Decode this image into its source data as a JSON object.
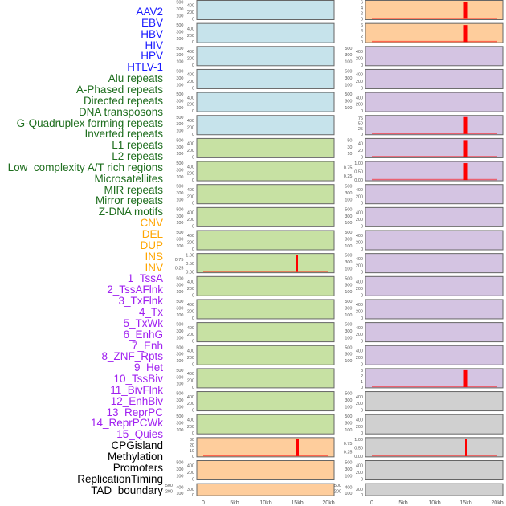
{
  "legend": [
    {
      "label": "AAV2",
      "color": "#1a1aff"
    },
    {
      "label": "EBV",
      "color": "#1a1aff"
    },
    {
      "label": "HBV",
      "color": "#1a1aff"
    },
    {
      "label": "HIV",
      "color": "#1a1aff"
    },
    {
      "label": "HPV",
      "color": "#1a1aff"
    },
    {
      "label": "HTLV-1",
      "color": "#1a1aff"
    },
    {
      "label": "Alu repeats",
      "color": "#1e6e1e"
    },
    {
      "label": "A-Phased repeats",
      "color": "#1e6e1e"
    },
    {
      "label": "Directed repeats",
      "color": "#1e6e1e"
    },
    {
      "label": "DNA transposons",
      "color": "#1e6e1e"
    },
    {
      "label": "G-Quadruplex forming repeats",
      "color": "#1e6e1e"
    },
    {
      "label": "Inverted repeats",
      "color": "#1e6e1e"
    },
    {
      "label": "L1 repeats",
      "color": "#1e6e1e"
    },
    {
      "label": "L2 repeats",
      "color": "#1e6e1e"
    },
    {
      "label": "Low_complexity A/T rich regions",
      "color": "#1e6e1e"
    },
    {
      "label": "Microsatellites",
      "color": "#1e6e1e"
    },
    {
      "label": "MIR repeats",
      "color": "#1e6e1e"
    },
    {
      "label": "Mirror repeats",
      "color": "#1e6e1e"
    },
    {
      "label": "Z-DNA motifs",
      "color": "#1e6e1e"
    },
    {
      "label": "CNV",
      "color": "#ffa500"
    },
    {
      "label": "DEL",
      "color": "#ffa500"
    },
    {
      "label": "DUP",
      "color": "#ffa500"
    },
    {
      "label": "INS",
      "color": "#ffa500"
    },
    {
      "label": "INV",
      "color": "#ffa500"
    },
    {
      "label": "1_TssA",
      "color": "#a020f0"
    },
    {
      "label": "2_TssAFlnk",
      "color": "#a020f0"
    },
    {
      "label": "3_TxFlnk",
      "color": "#a020f0"
    },
    {
      "label": "4_Tx",
      "color": "#a020f0"
    },
    {
      "label": "5_TxWk",
      "color": "#a020f0"
    },
    {
      "label": "6_EnhG",
      "color": "#a020f0"
    },
    {
      "label": "7_Enh",
      "color": "#a020f0"
    },
    {
      "label": "8_ZNF_Rpts",
      "color": "#a020f0"
    },
    {
      "label": "9_Het",
      "color": "#a020f0"
    },
    {
      "label": "10_TssBiv",
      "color": "#a020f0"
    },
    {
      "label": "11_BivFlnk",
      "color": "#a020f0"
    },
    {
      "label": "12_EnhBiv",
      "color": "#a020f0"
    },
    {
      "label": "13_ReprPC",
      "color": "#a020f0"
    },
    {
      "label": "14_ReprPCWk",
      "color": "#a020f0"
    },
    {
      "label": "15_Quies",
      "color": "#a020f0"
    },
    {
      "label": "CPGisland",
      "color": "#000000"
    },
    {
      "label": "Methylation",
      "color": "#000000"
    },
    {
      "label": "Promoters",
      "color": "#000000"
    },
    {
      "label": "ReplicationTiming",
      "color": "#000000"
    },
    {
      "label": "TAD_boundary",
      "color": "#000000"
    }
  ],
  "chart_data": {
    "type": "bar",
    "x_range": [
      0,
      20000
    ],
    "x_ticks": [
      "0",
      "5kb",
      "10kb",
      "15kb",
      "20kb"
    ],
    "x_tick_values": [
      0,
      5000,
      10000,
      15000,
      20000
    ],
    "colors": {
      "blue": "#c6e3eb",
      "green": "#c7e1a3",
      "orange": "#fecd9c",
      "purple": "#d4c4e2",
      "gray": "#d0d0d0",
      "spike": "#ff0000"
    },
    "columns": [
      [
        {
          "fill": "blue",
          "ticks": [
            "0",
            "100",
            "200",
            "300",
            "400",
            "500"
          ],
          "ymax": 500
        },
        {
          "fill": "blue",
          "ticks": [
            "0",
            "100",
            "200",
            "300",
            "400",
            "500"
          ],
          "ymax": 500
        },
        {
          "fill": "blue",
          "ticks": [
            "0",
            "100",
            "200",
            "300",
            "400",
            "500"
          ],
          "ymax": 500
        },
        {
          "fill": "blue",
          "ticks": [
            "0",
            "100",
            "200",
            "300",
            "400",
            "500"
          ],
          "ymax": 500
        },
        {
          "fill": "blue",
          "ticks": [
            "0",
            "100",
            "200",
            "300",
            "400",
            "500"
          ],
          "ymax": 500
        },
        {
          "fill": "blue",
          "ticks": [
            "0",
            "100",
            "200",
            "300",
            "400",
            "500"
          ],
          "ymax": 500
        },
        {
          "fill": "green",
          "ticks": [
            "0",
            "100",
            "200",
            "300",
            "400",
            "500"
          ],
          "ymax": 500
        },
        {
          "fill": "green",
          "ticks": [
            "0",
            "100",
            "200",
            "300",
            "400",
            "500"
          ],
          "ymax": 500
        },
        {
          "fill": "green",
          "ticks": [
            "0",
            "100",
            "200",
            "300",
            "400",
            "500"
          ],
          "ymax": 500
        },
        {
          "fill": "green",
          "ticks": [
            "0",
            "100",
            "200",
            "300",
            "400",
            "500"
          ],
          "ymax": 500
        },
        {
          "fill": "green",
          "ticks": [
            "0",
            "100",
            "200",
            "300",
            "400",
            "500"
          ],
          "ymax": 500
        },
        {
          "fill": "green",
          "ticks": [
            "0.00",
            "0.25",
            "0.50",
            "0.75",
            "1.00"
          ],
          "ymax": 1,
          "spike": {
            "x": 15000,
            "y": 1,
            "w": 2
          }
        },
        {
          "fill": "green",
          "ticks": [
            "0",
            "100",
            "200",
            "300",
            "400",
            "500"
          ],
          "ymax": 500
        },
        {
          "fill": "green",
          "ticks": [
            "0",
            "100",
            "200",
            "300",
            "400",
            "500"
          ],
          "ymax": 500
        },
        {
          "fill": "green",
          "ticks": [
            "0",
            "100",
            "200",
            "300",
            "400",
            "500"
          ],
          "ymax": 500
        },
        {
          "fill": "green",
          "ticks": [
            "0",
            "100",
            "200",
            "300",
            "400",
            "500"
          ],
          "ymax": 500
        },
        {
          "fill": "green",
          "ticks": [
            "0",
            "100",
            "200",
            "300",
            "400",
            "500"
          ],
          "ymax": 500
        },
        {
          "fill": "green",
          "ticks": [
            "0",
            "100",
            "200",
            "300",
            "400",
            "500"
          ],
          "ymax": 500
        },
        {
          "fill": "green",
          "ticks": [
            "0",
            "100",
            "200",
            "300",
            "400",
            "500"
          ],
          "ymax": 500
        },
        {
          "fill": "orange",
          "ticks": [
            "0",
            "10",
            "20",
            "30"
          ],
          "ymax": 30,
          "spike": {
            "x": 15000,
            "y": 30,
            "w": 4
          }
        },
        {
          "fill": "orange",
          "ticks": [
            "0",
            "100",
            "200",
            "300",
            "400",
            "500"
          ],
          "ymax": 500
        },
        {
          "fill": "orange",
          "ticks": [
            "0",
            "100",
            "200",
            "300",
            "400",
            "500"
          ],
          "ymax": 500,
          "short": true
        }
      ],
      [
        {
          "fill": "orange",
          "ticks": [
            "0",
            "2",
            "4",
            "6"
          ],
          "ymax": 6,
          "spike": {
            "x": 15000,
            "y": 6,
            "w": 5
          }
        },
        {
          "fill": "orange",
          "ticks": [
            "0",
            "2",
            "4",
            "6"
          ],
          "ymax": 6,
          "spike": {
            "x": 15000,
            "y": 6,
            "w": 5
          }
        },
        {
          "fill": "purple",
          "ticks": [
            "0",
            "100",
            "200",
            "300",
            "400",
            "500"
          ],
          "ymax": 500
        },
        {
          "fill": "purple",
          "ticks": [
            "0",
            "100",
            "200",
            "300",
            "400",
            "500"
          ],
          "ymax": 500
        },
        {
          "fill": "purple",
          "ticks": [
            "0",
            "100",
            "200",
            "300",
            "400",
            "500"
          ],
          "ymax": 500
        },
        {
          "fill": "purple",
          "ticks": [
            "0",
            "25",
            "50",
            "75"
          ],
          "ymax": 80,
          "spike": {
            "x": 15000,
            "y": 80,
            "w": 5
          }
        },
        {
          "fill": "purple",
          "ticks": [
            "0",
            "10",
            "20",
            "30",
            "40",
            "50"
          ],
          "ymax": 50,
          "spike": {
            "x": 15000,
            "y": 50,
            "w": 5
          }
        },
        {
          "fill": "purple",
          "ticks": [
            "0.00",
            "0.25",
            "0.50",
            "0.75",
            "1.00"
          ],
          "ymax": 1,
          "spike": {
            "x": 15000,
            "y": 1,
            "w": 5
          }
        },
        {
          "fill": "purple",
          "ticks": [
            "0",
            "100",
            "200",
            "300",
            "400",
            "500"
          ],
          "ymax": 500
        },
        {
          "fill": "purple",
          "ticks": [
            "0",
            "100",
            "200",
            "300",
            "400",
            "500"
          ],
          "ymax": 500
        },
        {
          "fill": "purple",
          "ticks": [
            "0",
            "100",
            "200",
            "300",
            "400",
            "500"
          ],
          "ymax": 500
        },
        {
          "fill": "purple",
          "ticks": [
            "0",
            "100",
            "200",
            "300",
            "400",
            "500"
          ],
          "ymax": 500
        },
        {
          "fill": "purple",
          "ticks": [
            "0",
            "100",
            "200",
            "300",
            "400",
            "500"
          ],
          "ymax": 500
        },
        {
          "fill": "purple",
          "ticks": [
            "0",
            "100",
            "200",
            "300",
            "400",
            "500"
          ],
          "ymax": 500
        },
        {
          "fill": "purple",
          "ticks": [
            "0",
            "100",
            "200",
            "300",
            "400",
            "500"
          ],
          "ymax": 500
        },
        {
          "fill": "purple",
          "ticks": [
            "0",
            "100",
            "200",
            "300",
            "400",
            "500"
          ],
          "ymax": 500
        },
        {
          "fill": "purple",
          "ticks": [
            "0",
            "1",
            "2",
            "3"
          ],
          "ymax": 3,
          "spike": {
            "x": 15000,
            "y": 3,
            "w": 5
          }
        },
        {
          "fill": "gray",
          "ticks": [
            "0",
            "100",
            "200",
            "300",
            "400",
            "500"
          ],
          "ymax": 500
        },
        {
          "fill": "gray",
          "ticks": [
            "0",
            "100",
            "200",
            "300",
            "400",
            "500"
          ],
          "ymax": 500
        },
        {
          "fill": "gray",
          "ticks": [
            "0.00",
            "0.25",
            "0.50",
            "0.75",
            "1.00"
          ],
          "ymax": 1,
          "spike": {
            "x": 15000,
            "y": 1,
            "w": 2
          }
        },
        {
          "fill": "gray",
          "ticks": [
            "0",
            "100",
            "200",
            "300",
            "400",
            "500"
          ],
          "ymax": 500
        },
        {
          "fill": "gray",
          "ticks": [
            "0",
            "100",
            "200",
            "300",
            "400",
            "500"
          ],
          "ymax": 500,
          "short": true
        }
      ]
    ]
  }
}
